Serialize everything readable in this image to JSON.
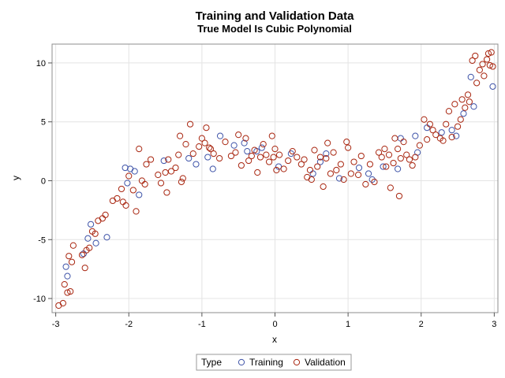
{
  "chart_data": {
    "type": "scatter",
    "title": "Training and Validation Data",
    "subtitle": "True Model Is Cubic Polynomial",
    "xlabel": "x",
    "ylabel": "y",
    "xlim": [
      -3.05,
      3.05
    ],
    "ylim": [
      -11.2,
      11.6
    ],
    "xticks": [
      -3,
      -2,
      -1,
      0,
      1,
      2,
      3
    ],
    "yticks": [
      -10,
      -5,
      0,
      5,
      10
    ],
    "grid": true,
    "legend": {
      "placement": "bottom-center",
      "title": "Type",
      "entries": [
        "Training",
        "Validation"
      ]
    },
    "colors": {
      "Training": "#3e53a8",
      "Validation": "#a8250f"
    },
    "series": [
      {
        "name": "Training",
        "points": [
          [
            -2.86,
            -7.3
          ],
          [
            -2.84,
            -8.1
          ],
          [
            -2.62,
            -6.2
          ],
          [
            -2.56,
            -4.9
          ],
          [
            -2.52,
            -3.7
          ],
          [
            -2.45,
            -5.3
          ],
          [
            -2.3,
            -4.8
          ],
          [
            -2.05,
            1.1
          ],
          [
            -1.98,
            1.0
          ],
          [
            -2.02,
            -0.2
          ],
          [
            -1.92,
            0.8
          ],
          [
            -1.86,
            -1.2
          ],
          [
            -1.52,
            1.7
          ],
          [
            -1.18,
            1.9
          ],
          [
            -1.08,
            1.4
          ],
          [
            -0.92,
            2.0
          ],
          [
            -0.85,
            1.0
          ],
          [
            -0.75,
            3.8
          ],
          [
            -0.56,
            3.0
          ],
          [
            -0.42,
            3.2
          ],
          [
            -0.38,
            2.5
          ],
          [
            -0.25,
            2.5
          ],
          [
            -0.18,
            2.8
          ],
          [
            0.05,
            1.2
          ],
          [
            0.22,
            2.3
          ],
          [
            0.52,
            0.6
          ],
          [
            0.62,
            1.6
          ],
          [
            0.7,
            2.3
          ],
          [
            0.88,
            0.2
          ],
          [
            1.15,
            1.1
          ],
          [
            1.28,
            0.6
          ],
          [
            1.33,
            0.1
          ],
          [
            1.48,
            1.2
          ],
          [
            1.68,
            1.0
          ],
          [
            1.72,
            3.6
          ],
          [
            1.92,
            3.8
          ],
          [
            1.95,
            2.4
          ],
          [
            2.08,
            4.5
          ],
          [
            2.28,
            4.1
          ],
          [
            2.42,
            4.3
          ],
          [
            2.48,
            3.8
          ],
          [
            2.58,
            5.7
          ],
          [
            2.68,
            8.8
          ],
          [
            2.72,
            6.3
          ],
          [
            2.98,
            8.0
          ]
        ]
      },
      {
        "name": "Validation",
        "points": [
          [
            -2.96,
            -10.6
          ],
          [
            -2.9,
            -10.4
          ],
          [
            -2.88,
            -8.8
          ],
          [
            -2.84,
            -9.5
          ],
          [
            -2.82,
            -6.4
          ],
          [
            -2.8,
            -9.4
          ],
          [
            -2.78,
            -6.9
          ],
          [
            -2.76,
            -5.5
          ],
          [
            -2.64,
            -6.3
          ],
          [
            -2.6,
            -7.4
          ],
          [
            -2.58,
            -5.9
          ],
          [
            -2.54,
            -5.7
          ],
          [
            -2.5,
            -4.3
          ],
          [
            -2.46,
            -4.5
          ],
          [
            -2.42,
            -3.4
          ],
          [
            -2.36,
            -3.2
          ],
          [
            -2.32,
            -2.9
          ],
          [
            -2.22,
            -1.7
          ],
          [
            -2.16,
            -1.5
          ],
          [
            -2.1,
            -0.7
          ],
          [
            -2.08,
            -1.8
          ],
          [
            -2.04,
            -2.1
          ],
          [
            -2.0,
            0.4
          ],
          [
            -1.94,
            -0.8
          ],
          [
            -1.9,
            -2.6
          ],
          [
            -1.86,
            2.7
          ],
          [
            -1.82,
            0.0
          ],
          [
            -1.78,
            -0.3
          ],
          [
            -1.76,
            1.4
          ],
          [
            -1.7,
            1.8
          ],
          [
            -1.6,
            0.5
          ],
          [
            -1.56,
            -0.2
          ],
          [
            -1.5,
            0.7
          ],
          [
            -1.48,
            -1.0
          ],
          [
            -1.46,
            1.8
          ],
          [
            -1.42,
            0.8
          ],
          [
            -1.36,
            1.1
          ],
          [
            -1.32,
            2.2
          ],
          [
            -1.3,
            3.8
          ],
          [
            -1.28,
            -0.1
          ],
          [
            -1.26,
            0.2
          ],
          [
            -1.22,
            3.1
          ],
          [
            -1.16,
            4.8
          ],
          [
            -1.12,
            2.3
          ],
          [
            -1.04,
            2.9
          ],
          [
            -1.0,
            3.6
          ],
          [
            -0.96,
            3.2
          ],
          [
            -0.94,
            4.5
          ],
          [
            -0.9,
            2.8
          ],
          [
            -0.88,
            2.7
          ],
          [
            -0.84,
            2.3
          ],
          [
            -0.76,
            1.9
          ],
          [
            -0.68,
            3.3
          ],
          [
            -0.6,
            2.1
          ],
          [
            -0.54,
            2.4
          ],
          [
            -0.5,
            3.9
          ],
          [
            -0.46,
            1.3
          ],
          [
            -0.4,
            3.6
          ],
          [
            -0.36,
            1.7
          ],
          [
            -0.32,
            2.1
          ],
          [
            -0.28,
            2.6
          ],
          [
            -0.24,
            0.7
          ],
          [
            -0.2,
            2.0
          ],
          [
            -0.16,
            3.1
          ],
          [
            -0.12,
            2.2
          ],
          [
            -0.08,
            1.6
          ],
          [
            -0.04,
            3.8
          ],
          [
            -0.02,
            2.0
          ],
          [
            0.0,
            2.7
          ],
          [
            0.02,
            0.9
          ],
          [
            0.06,
            2.2
          ],
          [
            0.12,
            1.0
          ],
          [
            0.18,
            1.7
          ],
          [
            0.24,
            2.5
          ],
          [
            0.3,
            2.0
          ],
          [
            0.36,
            1.4
          ],
          [
            0.4,
            1.8
          ],
          [
            0.44,
            0.3
          ],
          [
            0.48,
            0.9
          ],
          [
            0.5,
            0.1
          ],
          [
            0.54,
            2.6
          ],
          [
            0.58,
            1.2
          ],
          [
            0.62,
            2.0
          ],
          [
            0.66,
            -0.5
          ],
          [
            0.7,
            1.9
          ],
          [
            0.72,
            3.2
          ],
          [
            0.76,
            0.6
          ],
          [
            0.8,
            2.4
          ],
          [
            0.84,
            0.9
          ],
          [
            0.9,
            1.4
          ],
          [
            0.94,
            0.1
          ],
          [
            0.98,
            3.3
          ],
          [
            1.0,
            2.8
          ],
          [
            1.04,
            0.6
          ],
          [
            1.08,
            1.6
          ],
          [
            1.14,
            0.5
          ],
          [
            1.18,
            2.1
          ],
          [
            1.24,
            -0.3
          ],
          [
            1.3,
            1.4
          ],
          [
            1.36,
            -0.1
          ],
          [
            1.42,
            2.4
          ],
          [
            1.46,
            2.0
          ],
          [
            1.5,
            2.7
          ],
          [
            1.52,
            1.2
          ],
          [
            1.56,
            2.2
          ],
          [
            1.58,
            -0.6
          ],
          [
            1.62,
            1.5
          ],
          [
            1.64,
            3.6
          ],
          [
            1.68,
            2.7
          ],
          [
            1.7,
            -1.3
          ],
          [
            1.72,
            1.9
          ],
          [
            1.76,
            3.3
          ],
          [
            1.8,
            2.2
          ],
          [
            1.84,
            1.8
          ],
          [
            1.88,
            1.3
          ],
          [
            1.92,
            2.0
          ],
          [
            1.98,
            3.0
          ],
          [
            2.04,
            5.2
          ],
          [
            2.08,
            3.5
          ],
          [
            2.12,
            4.8
          ],
          [
            2.16,
            4.3
          ],
          [
            2.2,
            3.9
          ],
          [
            2.26,
            3.6
          ],
          [
            2.3,
            3.4
          ],
          [
            2.34,
            4.8
          ],
          [
            2.38,
            5.9
          ],
          [
            2.42,
            3.7
          ],
          [
            2.46,
            6.5
          ],
          [
            2.5,
            4.6
          ],
          [
            2.54,
            5.2
          ],
          [
            2.56,
            6.9
          ],
          [
            2.6,
            6.2
          ],
          [
            2.64,
            7.3
          ],
          [
            2.66,
            6.7
          ],
          [
            2.7,
            10.2
          ],
          [
            2.74,
            10.6
          ],
          [
            2.76,
            8.3
          ],
          [
            2.8,
            9.4
          ],
          [
            2.84,
            9.9
          ],
          [
            2.86,
            8.9
          ],
          [
            2.9,
            10.3
          ],
          [
            2.92,
            10.8
          ],
          [
            2.94,
            9.8
          ],
          [
            2.96,
            10.9
          ],
          [
            2.98,
            9.7
          ]
        ]
      }
    ]
  }
}
